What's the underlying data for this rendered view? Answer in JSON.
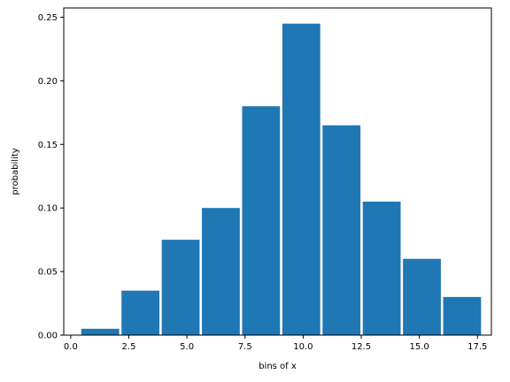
{
  "chart_data": {
    "type": "bar",
    "title": "",
    "xlabel": "bins of x",
    "ylabel": "probability",
    "xlim": [
      -0.3,
      18.1
    ],
    "ylim": [
      0,
      0.2573
    ],
    "bar_width": 1.63,
    "bar_color": "#1f77b4",
    "grid": false,
    "bars": [
      {
        "x": 1.27,
        "value": 0.005
      },
      {
        "x": 3.0,
        "value": 0.035
      },
      {
        "x": 4.73,
        "value": 0.075
      },
      {
        "x": 6.46,
        "value": 0.1
      },
      {
        "x": 8.19,
        "value": 0.18
      },
      {
        "x": 9.92,
        "value": 0.245
      },
      {
        "x": 11.65,
        "value": 0.165
      },
      {
        "x": 13.38,
        "value": 0.105
      },
      {
        "x": 15.11,
        "value": 0.06
      },
      {
        "x": 16.84,
        "value": 0.03
      }
    ],
    "xticks": [
      {
        "value": 0.0,
        "label": "0.0"
      },
      {
        "value": 2.5,
        "label": "2.5"
      },
      {
        "value": 5.0,
        "label": "5.0"
      },
      {
        "value": 7.5,
        "label": "7.5"
      },
      {
        "value": 10.0,
        "label": "10.0"
      },
      {
        "value": 12.5,
        "label": "12.5"
      },
      {
        "value": 15.0,
        "label": "15.0"
      },
      {
        "value": 17.5,
        "label": "17.5"
      }
    ],
    "yticks": [
      {
        "value": 0.0,
        "label": "0.00"
      },
      {
        "value": 0.05,
        "label": "0.05"
      },
      {
        "value": 0.1,
        "label": "0.10"
      },
      {
        "value": 0.15,
        "label": "0.15"
      },
      {
        "value": 0.2,
        "label": "0.20"
      },
      {
        "value": 0.25,
        "label": "0.25"
      }
    ]
  }
}
